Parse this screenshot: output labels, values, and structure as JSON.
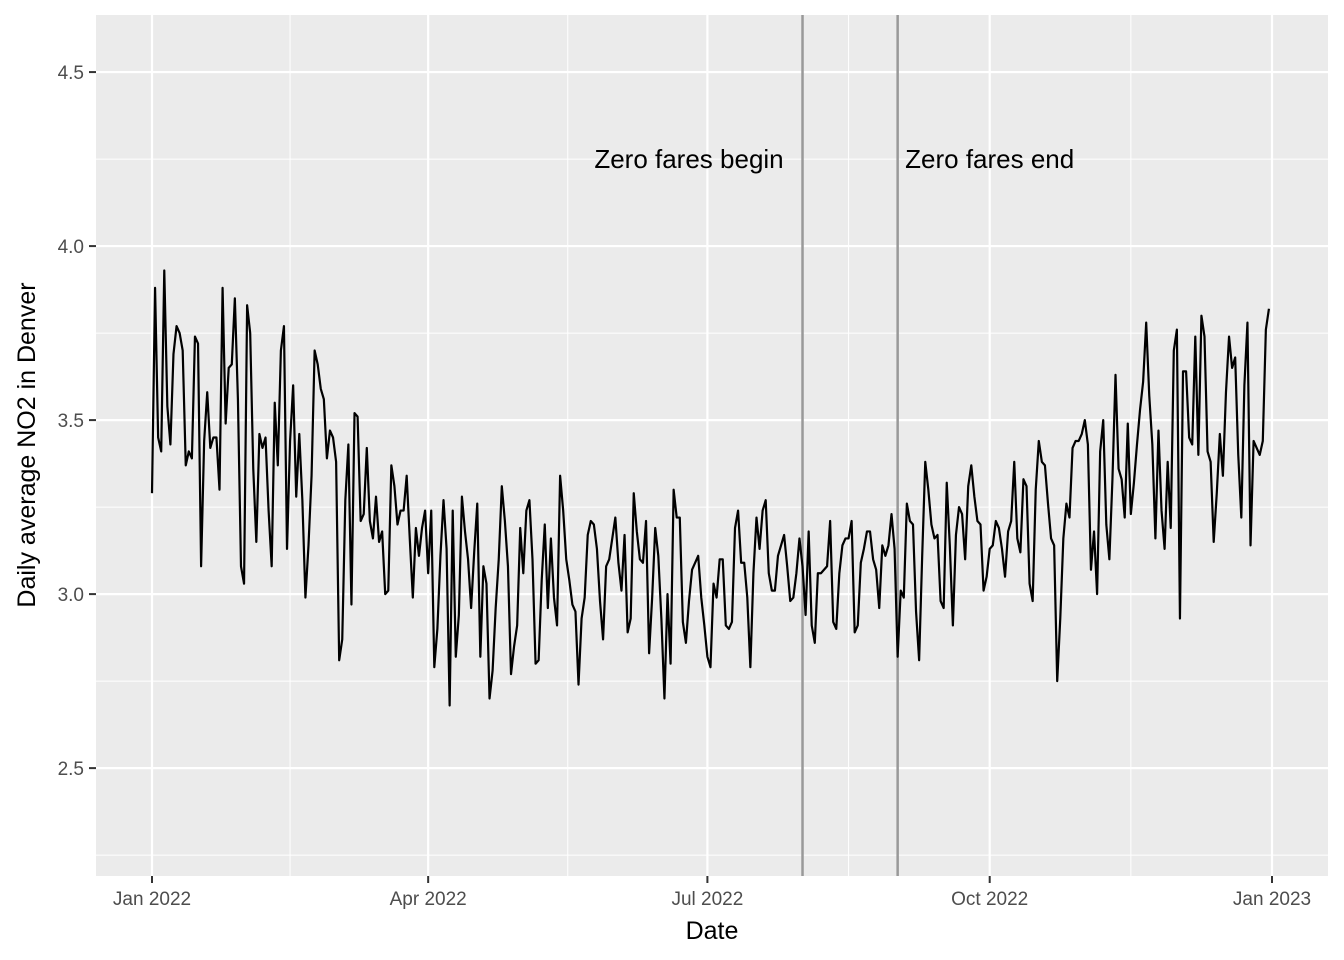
{
  "chart_data": {
    "type": "line",
    "xlabel": "Date",
    "ylabel": "Daily average NO2 in Denver",
    "color": "#000000",
    "grid": true,
    "xlim": [
      -18.25,
      383.25
    ],
    "ylim": [
      2.19,
      4.664
    ],
    "xticks": [
      {
        "value": 0,
        "label": "Jan 2022"
      },
      {
        "value": 90,
        "label": "Apr 2022"
      },
      {
        "value": 181,
        "label": "Jul 2022"
      },
      {
        "value": 273,
        "label": "Oct 2022"
      },
      {
        "value": 365,
        "label": "Jan 2023"
      }
    ],
    "yticks": [
      2.5,
      {
        "value": 3.0,
        "label": "3.0"
      },
      3.5,
      {
        "value": 4.0,
        "label": "4.0"
      },
      4.5
    ],
    "vlines": [
      212,
      243
    ],
    "annotations": [
      {
        "x": 175,
        "y": 4.25,
        "label": "Zero fares begin"
      },
      {
        "x": 273,
        "y": 4.25,
        "label": "Zero fares end"
      }
    ],
    "x": [
      0,
      1,
      2,
      3,
      4,
      5,
      6,
      7,
      8,
      9,
      10,
      11,
      12,
      13,
      14,
      15,
      16,
      17,
      18,
      19,
      20,
      21,
      22,
      23,
      24,
      25,
      26,
      27,
      28,
      29,
      30,
      31,
      32,
      33,
      34,
      35,
      36,
      37,
      38,
      39,
      40,
      41,
      42,
      43,
      44,
      45,
      46,
      47,
      48,
      49,
      50,
      51,
      52,
      53,
      54,
      55,
      56,
      57,
      58,
      59,
      60,
      61,
      62,
      63,
      64,
      65,
      66,
      67,
      68,
      69,
      70,
      71,
      72,
      73,
      74,
      75,
      76,
      77,
      78,
      79,
      80,
      81,
      82,
      83,
      84,
      85,
      86,
      87,
      88,
      89,
      90,
      91,
      92,
      93,
      94,
      95,
      96,
      97,
      98,
      99,
      100,
      101,
      102,
      103,
      104,
      105,
      106,
      107,
      108,
      109,
      110,
      111,
      112,
      113,
      114,
      115,
      116,
      117,
      118,
      119,
      120,
      121,
      122,
      123,
      124,
      125,
      126,
      127,
      128,
      129,
      130,
      131,
      132,
      133,
      134,
      135,
      136,
      137,
      138,
      139,
      140,
      141,
      142,
      143,
      144,
      145,
      146,
      147,
      148,
      149,
      150,
      151,
      152,
      153,
      154,
      155,
      156,
      157,
      158,
      159,
      160,
      161,
      162,
      163,
      164,
      165,
      166,
      167,
      168,
      169,
      170,
      171,
      172,
      173,
      174,
      175,
      176,
      177,
      178,
      179,
      180,
      181,
      182,
      183,
      184,
      185,
      186,
      187,
      188,
      189,
      190,
      191,
      192,
      193,
      194,
      195,
      196,
      197,
      198,
      199,
      200,
      201,
      202,
      203,
      204,
      205,
      206,
      207,
      208,
      209,
      210,
      211,
      212,
      213,
      214,
      215,
      216,
      217,
      218,
      219,
      220,
      221,
      222,
      223,
      224,
      225,
      226,
      227,
      228,
      229,
      230,
      231,
      232,
      233,
      234,
      235,
      236,
      237,
      238,
      239,
      240,
      241,
      242,
      243,
      244,
      245,
      246,
      247,
      248,
      249,
      250,
      251,
      252,
      253,
      254,
      255,
      256,
      257,
      258,
      259,
      260,
      261,
      262,
      263,
      264,
      265,
      266,
      267,
      268,
      269,
      270,
      271,
      272,
      273,
      274,
      275,
      276,
      277,
      278,
      279,
      280,
      281,
      282,
      283,
      284,
      285,
      286,
      287,
      288,
      289,
      290,
      291,
      292,
      293,
      294,
      295,
      296,
      297,
      298,
      299,
      300,
      301,
      302,
      303,
      304,
      305,
      306,
      307,
      308,
      309,
      310,
      311,
      312,
      313,
      314,
      315,
      316,
      317,
      318,
      319,
      320,
      321,
      322,
      323,
      324,
      325,
      326,
      327,
      328,
      329,
      330,
      331,
      332,
      333,
      334,
      335,
      336,
      337,
      338,
      339,
      340,
      341,
      342,
      343,
      344,
      345,
      346,
      347,
      348,
      349,
      350,
      351,
      352,
      353,
      354,
      355,
      356,
      357,
      358,
      359,
      360,
      361,
      362,
      363,
      364
    ],
    "values": [
      3.29,
      3.88,
      3.45,
      3.41,
      3.93,
      3.54,
      3.43,
      3.69,
      3.77,
      3.75,
      3.7,
      3.37,
      3.41,
      3.39,
      3.74,
      3.72,
      3.08,
      3.44,
      3.58,
      3.42,
      3.45,
      3.45,
      3.3,
      3.88,
      3.49,
      3.65,
      3.66,
      3.85,
      3.56,
      3.08,
      3.03,
      3.83,
      3.75,
      3.36,
      3.15,
      3.46,
      3.42,
      3.45,
      3.24,
      3.08,
      3.55,
      3.37,
      3.7,
      3.77,
      3.13,
      3.44,
      3.6,
      3.28,
      3.46,
      3.27,
      2.99,
      3.14,
      3.34,
      3.7,
      3.66,
      3.59,
      3.56,
      3.39,
      3.47,
      3.45,
      3.38,
      2.81,
      2.87,
      3.27,
      3.43,
      2.97,
      3.52,
      3.51,
      3.21,
      3.23,
      3.42,
      3.21,
      3.16,
      3.28,
      3.15,
      3.18,
      3.0,
      3.01,
      3.37,
      3.31,
      3.2,
      3.24,
      3.24,
      3.34,
      3.16,
      2.99,
      3.19,
      3.11,
      3.19,
      3.24,
      3.06,
      3.24,
      2.79,
      2.9,
      3.11,
      3.27,
      3.13,
      2.68,
      3.24,
      2.82,
      2.94,
      3.28,
      3.18,
      3.1,
      2.96,
      3.12,
      3.26,
      2.82,
      3.08,
      3.03,
      2.7,
      2.78,
      2.96,
      3.1,
      3.31,
      3.21,
      3.08,
      2.77,
      2.85,
      2.91,
      3.19,
      3.06,
      3.24,
      3.27,
      3.1,
      2.8,
      2.81,
      3.04,
      3.2,
      2.96,
      3.16,
      2.99,
      2.91,
      3.34,
      3.24,
      3.1,
      3.04,
      2.97,
      2.95,
      2.74,
      2.93,
      2.99,
      3.17,
      3.21,
      3.2,
      3.13,
      2.98,
      2.87,
      3.08,
      3.1,
      3.16,
      3.22,
      3.09,
      3.01,
      3.17,
      2.89,
      2.93,
      3.29,
      3.18,
      3.1,
      3.09,
      3.21,
      2.83,
      2.99,
      3.19,
      3.11,
      2.93,
      2.7,
      3.0,
      2.8,
      3.3,
      3.22,
      3.22,
      2.92,
      2.86,
      2.98,
      3.07,
      3.09,
      3.11,
      2.99,
      2.91,
      2.82,
      2.79,
      3.03,
      2.99,
      3.1,
      3.1,
      2.91,
      2.9,
      2.92,
      3.19,
      3.24,
      3.09,
      3.09,
      2.99,
      2.79,
      3.06,
      3.22,
      3.13,
      3.24,
      3.27,
      3.06,
      3.01,
      3.01,
      3.11,
      3.14,
      3.17,
      3.08,
      2.98,
      2.99,
      3.06,
      3.16,
      3.08,
      2.94,
      3.18,
      2.91,
      2.86,
      3.06,
      3.06,
      3.07,
      3.08,
      3.21,
      2.92,
      2.9,
      3.06,
      3.14,
      3.16,
      3.16,
      3.21,
      2.89,
      2.91,
      3.09,
      3.13,
      3.18,
      3.18,
      3.1,
      3.07,
      2.96,
      3.14,
      3.11,
      3.14,
      3.23,
      3.13,
      2.82,
      3.01,
      2.99,
      3.26,
      3.21,
      3.2,
      2.95,
      2.81,
      3.11,
      3.38,
      3.3,
      3.2,
      3.16,
      3.17,
      2.98,
      2.96,
      3.32,
      3.14,
      2.91,
      3.17,
      3.25,
      3.23,
      3.1,
      3.31,
      3.37,
      3.28,
      3.21,
      3.2,
      3.01,
      3.05,
      3.13,
      3.14,
      3.21,
      3.19,
      3.13,
      3.05,
      3.18,
      3.21,
      3.38,
      3.16,
      3.12,
      3.33,
      3.31,
      3.03,
      2.98,
      3.3,
      3.44,
      3.38,
      3.37,
      3.26,
      3.16,
      3.14,
      2.75,
      2.93,
      3.16,
      3.26,
      3.22,
      3.42,
      3.44,
      3.44,
      3.46,
      3.5,
      3.43,
      3.07,
      3.18,
      3.0,
      3.41,
      3.5,
      3.2,
      3.1,
      3.33,
      3.63,
      3.36,
      3.33,
      3.22,
      3.49,
      3.23,
      3.32,
      3.43,
      3.53,
      3.61,
      3.78,
      3.57,
      3.43,
      3.16,
      3.47,
      3.24,
      3.13,
      3.38,
      3.19,
      3.7,
      3.76,
      2.93,
      3.64,
      3.64,
      3.45,
      3.43,
      3.74,
      3.4,
      3.8,
      3.74,
      3.41,
      3.38,
      3.15,
      3.29,
      3.46,
      3.34,
      3.58,
      3.74,
      3.65,
      3.68,
      3.4,
      3.22,
      3.6,
      3.78,
      3.14,
      3.44,
      3.42,
      3.4,
      3.44,
      3.76,
      3.82
    ]
  }
}
